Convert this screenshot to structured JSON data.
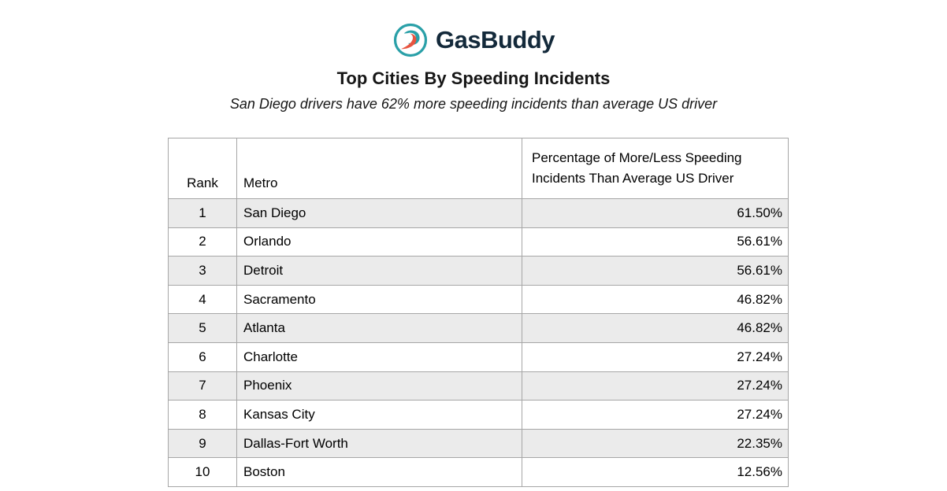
{
  "header": {
    "brand": "GasBuddy",
    "title": "Top Cities By Speeding Incidents",
    "subtitle": "San Diego drivers have 62% more speeding incidents than average US driver"
  },
  "colors": {
    "brand_teal": "#2aa0a8",
    "brand_orange": "#e8543f",
    "brand_navy": "#13293a",
    "row_shaded": "#ebebeb",
    "table_border": "#a6a6a6"
  },
  "table": {
    "columns": [
      "Rank",
      "Metro",
      "Percentage of More/Less Speeding Incidents Than Average US Driver"
    ],
    "rows": [
      [
        "1",
        "San Diego",
        "61.50%"
      ],
      [
        "2",
        "Orlando",
        "56.61%"
      ],
      [
        "3",
        "Detroit",
        "56.61%"
      ],
      [
        "4",
        "Sacramento",
        "46.82%"
      ],
      [
        "5",
        "Atlanta",
        "46.82%"
      ],
      [
        "6",
        "Charlotte",
        "27.24%"
      ],
      [
        "7",
        "Phoenix",
        "27.24%"
      ],
      [
        "8",
        "Kansas City",
        "27.24%"
      ],
      [
        "9",
        "Dallas-Fort Worth",
        "22.35%"
      ],
      [
        "10",
        "Boston",
        "12.56%"
      ]
    ]
  },
  "chart_data": {
    "type": "table",
    "title": "Top Cities By Speeding Incidents",
    "subtitle": "San Diego drivers have 62% more speeding incidents than average US driver",
    "columns": [
      "Rank",
      "Metro",
      "Percentage of More/Less Speeding Incidents Than Average US Driver"
    ],
    "rows": [
      [
        1,
        "San Diego",
        61.5
      ],
      [
        2,
        "Orlando",
        56.61
      ],
      [
        3,
        "Detroit",
        56.61
      ],
      [
        4,
        "Sacramento",
        46.82
      ],
      [
        5,
        "Atlanta",
        46.82
      ],
      [
        6,
        "Charlotte",
        27.24
      ],
      [
        7,
        "Phoenix",
        27.24
      ],
      [
        8,
        "Kansas City",
        27.24
      ],
      [
        9,
        "Dallas-Fort Worth",
        22.35
      ],
      [
        10,
        "Boston",
        12.56
      ]
    ],
    "value_unit": "percent"
  }
}
